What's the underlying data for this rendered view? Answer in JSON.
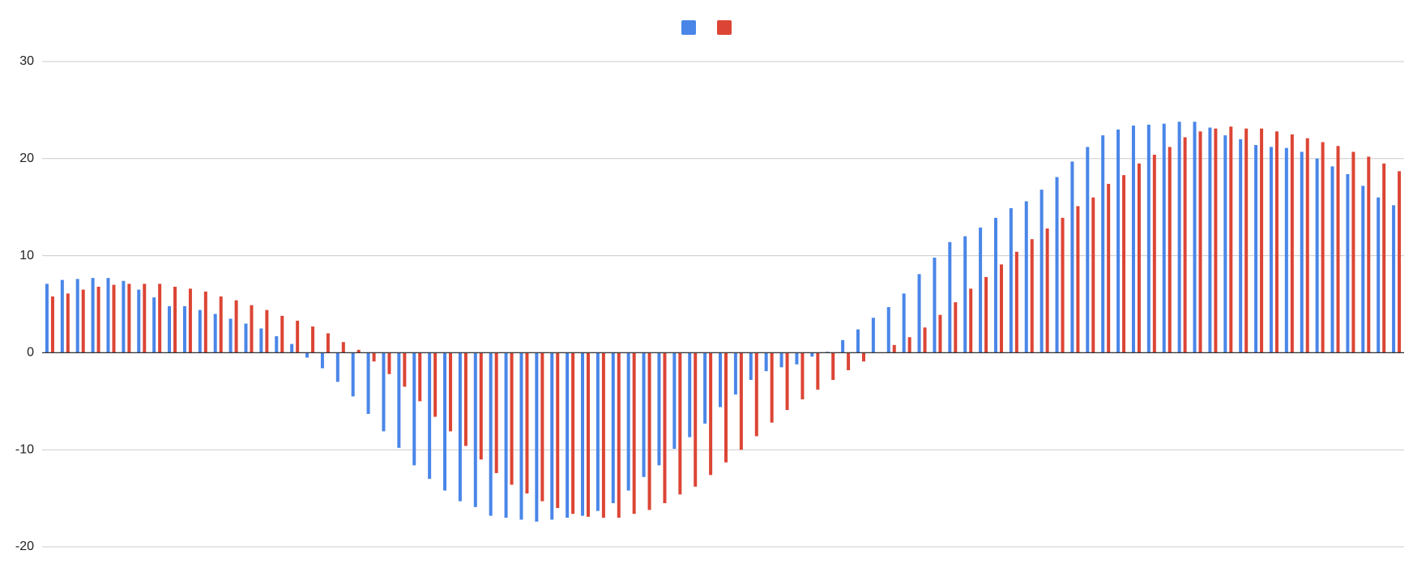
{
  "chart_data": {
    "type": "bar",
    "series": [
      {
        "color": "#4a86e8",
        "values": [
          7.1,
          7.5,
          7.6,
          7.7,
          7.7,
          7.4,
          6.5,
          5.7,
          4.8,
          4.8,
          4.4,
          4.0,
          3.5,
          3.0,
          2.5,
          1.7,
          0.9,
          -0.5,
          -1.6,
          -3.0,
          -4.5,
          -6.3,
          -8.1,
          -9.8,
          -11.6,
          -13.0,
          -14.2,
          -15.3,
          -15.9,
          -16.8,
          -17.0,
          -17.2,
          -17.4,
          -17.2,
          -17.0,
          -16.8,
          -16.3,
          -15.5,
          -14.2,
          -12.8,
          -11.6,
          -9.9,
          -8.7,
          -7.3,
          -5.6,
          -4.3,
          -2.8,
          -1.9,
          -1.5,
          -1.2,
          -0.4,
          0.1,
          1.3,
          2.4,
          3.6,
          4.7,
          6.1,
          8.1,
          9.8,
          11.4,
          12.0,
          12.9,
          13.9,
          14.9,
          15.6,
          16.8,
          18.1,
          19.7,
          21.2,
          22.4,
          23.0,
          23.4,
          23.5,
          23.6,
          23.8,
          23.8,
          23.2,
          22.4,
          22.0,
          21.4,
          21.2,
          21.1,
          20.7,
          20.0,
          19.2,
          18.4,
          17.2,
          16.0,
          15.2
        ]
      },
      {
        "color": "#dc4535",
        "values": [
          5.8,
          6.1,
          6.5,
          6.8,
          7.0,
          7.1,
          7.1,
          7.1,
          6.8,
          6.6,
          6.3,
          5.8,
          5.4,
          4.9,
          4.4,
          3.8,
          3.3,
          2.7,
          2.0,
          1.1,
          0.3,
          -0.9,
          -2.2,
          -3.5,
          -5.0,
          -6.6,
          -8.1,
          -9.6,
          -11.0,
          -12.4,
          -13.6,
          -14.5,
          -15.3,
          -16.0,
          -16.6,
          -16.9,
          -17.0,
          -17.0,
          -16.6,
          -16.2,
          -15.5,
          -14.6,
          -13.8,
          -12.6,
          -11.3,
          -10.0,
          -8.6,
          -7.2,
          -5.9,
          -4.8,
          -3.8,
          -2.8,
          -1.8,
          -0.9,
          0.0,
          0.8,
          1.6,
          2.6,
          3.9,
          5.2,
          6.6,
          7.8,
          9.1,
          10.4,
          11.7,
          12.8,
          13.9,
          15.1,
          16.0,
          17.4,
          18.3,
          19.5,
          20.4,
          21.2,
          22.2,
          22.8,
          23.1,
          23.3,
          23.1,
          23.1,
          22.8,
          22.5,
          22.1,
          21.7,
          21.3,
          20.7,
          20.2,
          19.5,
          18.7
        ]
      }
    ],
    "ylim": [
      -20,
      30
    ],
    "yticks": [
      -20,
      -10,
      0,
      10,
      20,
      30
    ],
    "grid": true
  }
}
